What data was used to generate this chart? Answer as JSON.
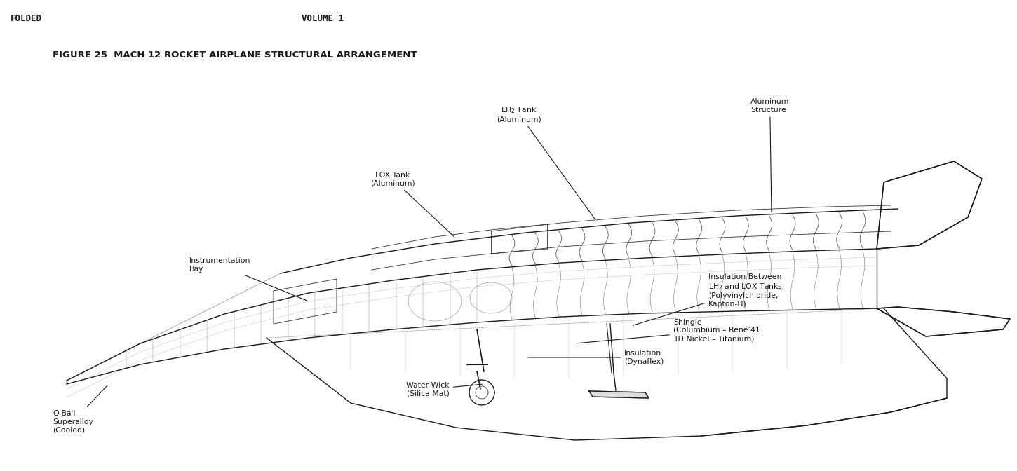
{
  "title": "FIGURE 25  MACH 12 ROCKET AIRPLANE STRUCTURAL ARRANGEMENT",
  "header_left": "FOLDED",
  "header_right": "VOLUME 1",
  "background_color": "#ffffff",
  "text_color": "#1a1a1a",
  "fig_width": 14.5,
  "fig_height": 6.72
}
